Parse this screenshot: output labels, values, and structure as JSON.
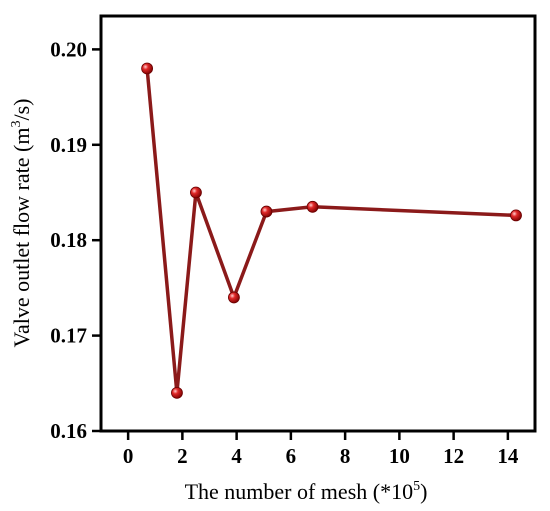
{
  "chart_data": {
    "type": "line",
    "xlabel": "The number of mesh (*10",
    "xlabel_sup": "5",
    "xlabel_end": ")",
    "ylabel": "Valve outlet flow rate (m",
    "ylabel_sup": "3",
    "ylabel_end": "/s)",
    "xlim": [
      -1,
      15
    ],
    "ylim": [
      0.16,
      0.2035
    ],
    "xticks": [
      0,
      2,
      4,
      6,
      8,
      10,
      12,
      14
    ],
    "xtick_labels": [
      "0",
      "2",
      "4",
      "6",
      "8",
      "10",
      "12",
      "14"
    ],
    "yticks": [
      0.16,
      0.17,
      0.18,
      0.19,
      0.2
    ],
    "ytick_labels": [
      "0.16",
      "0.17",
      "0.18",
      "0.19",
      "0.20"
    ],
    "series": [
      {
        "x": [
          0.7,
          1.8,
          2.5,
          3.9,
          5.1,
          6.8,
          14.3
        ],
        "y": [
          0.198,
          0.164,
          0.185,
          0.174,
          0.183,
          0.1835,
          0.1826
        ]
      }
    ],
    "grid": false,
    "line_color": "#8b1a1a",
    "marker_color": "#d42020"
  }
}
